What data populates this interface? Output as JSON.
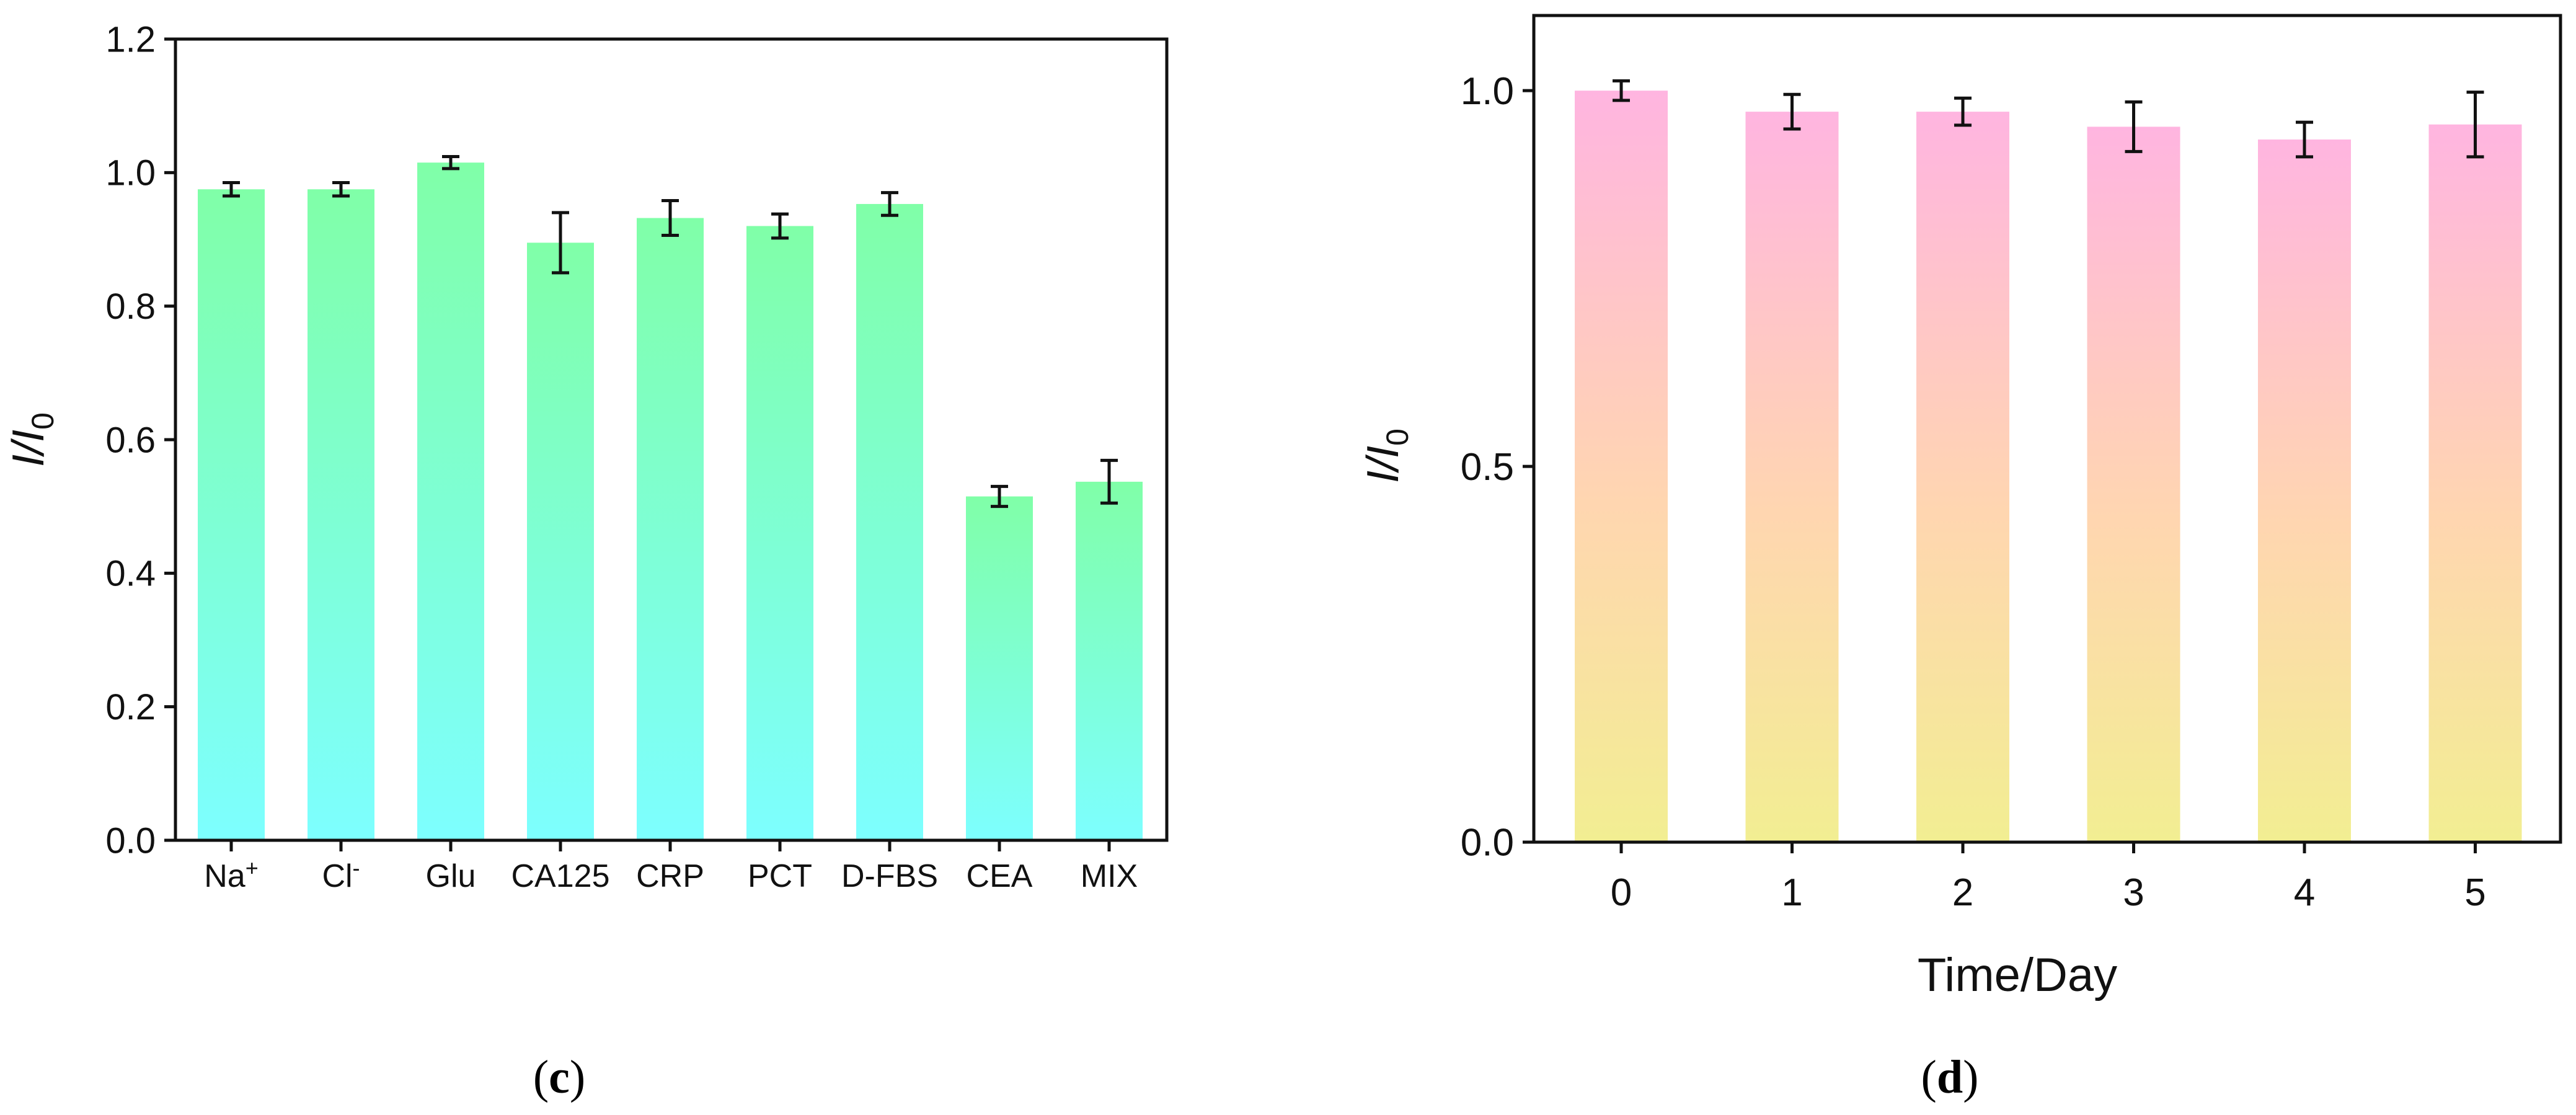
{
  "chart_data": [
    {
      "type": "bar",
      "panel_label": "c",
      "categories": [
        "Na",
        "Cl",
        "Glu",
        "CA125",
        "CRP",
        "PCT",
        "D-FBS",
        "CEA",
        "MIX"
      ],
      "category_superscripts": [
        "+",
        "-",
        "",
        "",
        "",
        "",
        "",
        "",
        ""
      ],
      "values": [
        0.975,
        0.975,
        1.015,
        0.895,
        0.932,
        0.92,
        0.953,
        0.515,
        0.537
      ],
      "errors": [
        0.01,
        0.01,
        0.009,
        0.045,
        0.026,
        0.018,
        0.017,
        0.015,
        0.032
      ],
      "ylabel": "I/I",
      "ylabel_subscript": "0",
      "xlabel": "",
      "ylim": [
        0,
        1.2
      ],
      "yticks": [
        "0.0",
        "0.2",
        "0.4",
        "0.6",
        "0.8",
        "1.0",
        "1.2"
      ],
      "gradient": {
        "top": "#80ffa8",
        "bottom": "#7dffff"
      }
    },
    {
      "type": "bar",
      "panel_label": "d",
      "categories": [
        "0",
        "1",
        "2",
        "3",
        "4",
        "5"
      ],
      "values": [
        1.0,
        0.972,
        0.972,
        0.952,
        0.935,
        0.955
      ],
      "errors": [
        0.013,
        0.023,
        0.018,
        0.033,
        0.023,
        0.043
      ],
      "ylabel": "I/I",
      "ylabel_subscript": "0",
      "xlabel": "Time/Day",
      "ylim": [
        0,
        1.1
      ],
      "yticks": [
        "0.0",
        "0.5",
        "1.0"
      ],
      "gradient": {
        "top": "#ffb5e0",
        "middle": "#ffd6b0",
        "bottom": "#f2ee92"
      }
    }
  ],
  "captions": [
    {
      "open": "(",
      "label": "c",
      "close": ")"
    },
    {
      "open": "(",
      "label": "d",
      "close": ")"
    }
  ]
}
